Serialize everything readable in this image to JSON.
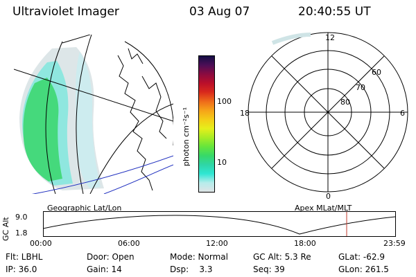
{
  "header": {
    "instrument": "Ultraviolet Imager",
    "date": "03 Aug 07",
    "time": "20:40:55 UT"
  },
  "colorbar": {
    "unit": "photon cm⁻²s⁻¹",
    "ticks": [
      "100",
      "10"
    ],
    "colors": [
      "#dfe4e6",
      "#b6eceb",
      "#2fe6d3",
      "#2fd6a6",
      "#37d968",
      "#66e53c",
      "#a8ec25",
      "#e6ef1b",
      "#f4cd17",
      "#f6a319",
      "#ee6a1a",
      "#d92a1c",
      "#bb0f2a",
      "#8c0b40",
      "#4c0e56",
      "#140e44"
    ]
  },
  "geo_map": {
    "label": "Geographic Lat/Lon"
  },
  "polar_plot": {
    "label": "Apex MLat/MLT",
    "mlt_labels": [
      "12",
      "18",
      "6",
      "0"
    ],
    "lat_labels": [
      "60",
      "70",
      "80"
    ]
  },
  "timeline": {
    "y_label": "GC Alt",
    "y_ticks": [
      "9.0",
      "1.8"
    ],
    "x_ticks": [
      "00:00",
      "06:00",
      "12:00",
      "18:00",
      "23:59"
    ],
    "marker_color": "#c0392b"
  },
  "info": {
    "row1": [
      "Flt: LBHL",
      "Door: Open",
      "Mode: Normal",
      "GC Alt: 5.3 Re",
      "GLat: -62.9"
    ],
    "row2": [
      "IP: 36.0",
      "Gain: 14",
      "Dsp:    3.3",
      "Seq: 39",
      "GLon: 261.5"
    ]
  }
}
